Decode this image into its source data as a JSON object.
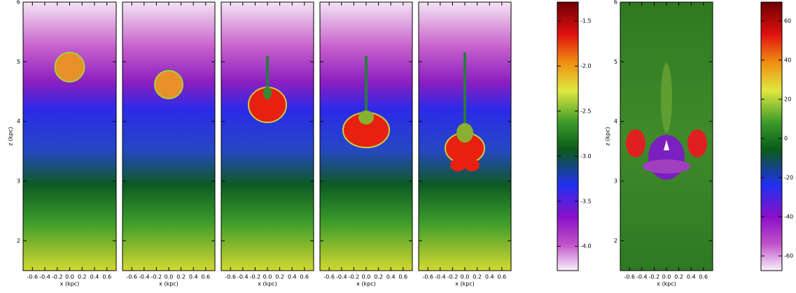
{
  "chart_data": [
    {
      "type": "heatmap",
      "xlabel": "x (kpc)",
      "ylabel": "z (kpc)",
      "xlim": [
        -0.75,
        0.75
      ],
      "xticks": [
        -0.6,
        -0.4,
        -0.2,
        {
          "value": 0,
          "label": "0.0"
        },
        0.2,
        0.4,
        0.6
      ],
      "ylim": [
        1.5,
        6
      ],
      "yticks": [
        2,
        3,
        4,
        5,
        6
      ]
    },
    {
      "type": "heatmap",
      "xlabel": "x (kpc)",
      "xlim": [
        -0.75,
        0.75
      ],
      "xticks": [
        -0.6,
        -0.4,
        -0.2,
        {
          "value": 0,
          "label": "0.0"
        },
        0.2,
        0.4,
        0.6
      ],
      "ylim": [
        1.5,
        6
      ],
      "yticks": [
        2,
        3,
        4,
        5,
        6
      ]
    },
    {
      "type": "heatmap",
      "xlabel": "x (kpc)",
      "xlim": [
        -0.75,
        0.75
      ],
      "xticks": [
        -0.6,
        -0.4,
        -0.2,
        {
          "value": 0,
          "label": "0.0"
        },
        0.2,
        0.4,
        0.6
      ],
      "ylim": [
        1.5,
        6
      ],
      "yticks": [
        2,
        3,
        4,
        5,
        6
      ]
    },
    {
      "type": "heatmap",
      "xlabel": "x (kpc)",
      "xlim": [
        -0.75,
        0.75
      ],
      "xticks": [
        -0.6,
        -0.4,
        -0.2,
        {
          "value": 0,
          "label": "0.0"
        },
        0.2,
        0.4,
        0.6
      ],
      "ylim": [
        1.5,
        6
      ],
      "yticks": [
        2,
        3,
        4,
        5,
        6
      ]
    },
    {
      "type": "heatmap",
      "xlabel": "x (kpc)",
      "xlim": [
        -0.75,
        0.75
      ],
      "xticks": [
        -0.6,
        -0.4,
        -0.2,
        {
          "value": 0,
          "label": "0.0"
        },
        0.2,
        0.4,
        0.6
      ],
      "ylim": [
        1.5,
        6
      ],
      "yticks": [
        2,
        3,
        4,
        5,
        6
      ]
    },
    {
      "type": "colorbar",
      "ylim": [
        -4.27,
        -1.29
      ],
      "yticks": [
        -1.5,
        {
          "value": -2,
          "label": "-2.0"
        },
        -2.5,
        {
          "value": -3,
          "label": "-3.0"
        },
        -3.5,
        {
          "value": -4,
          "label": "-4.0"
        }
      ]
    },
    {
      "type": "heatmap",
      "xlabel": "x (kpc)",
      "ylabel": "z (kpc)",
      "xlim": [
        -0.75,
        0.75
      ],
      "xticks": [
        -0.6,
        -0.4,
        -0.2,
        {
          "value": 0,
          "label": "0.0"
        },
        0.2,
        0.4,
        0.6
      ],
      "ylim": [
        1.5,
        6
      ],
      "yticks": [
        2,
        3,
        4,
        5,
        6
      ]
    },
    {
      "type": "colorbar",
      "ylim": [
        -67.5,
        69.6
      ],
      "yticks": [
        60,
        40,
        20,
        0,
        -20,
        -40,
        -60
      ]
    }
  ]
}
